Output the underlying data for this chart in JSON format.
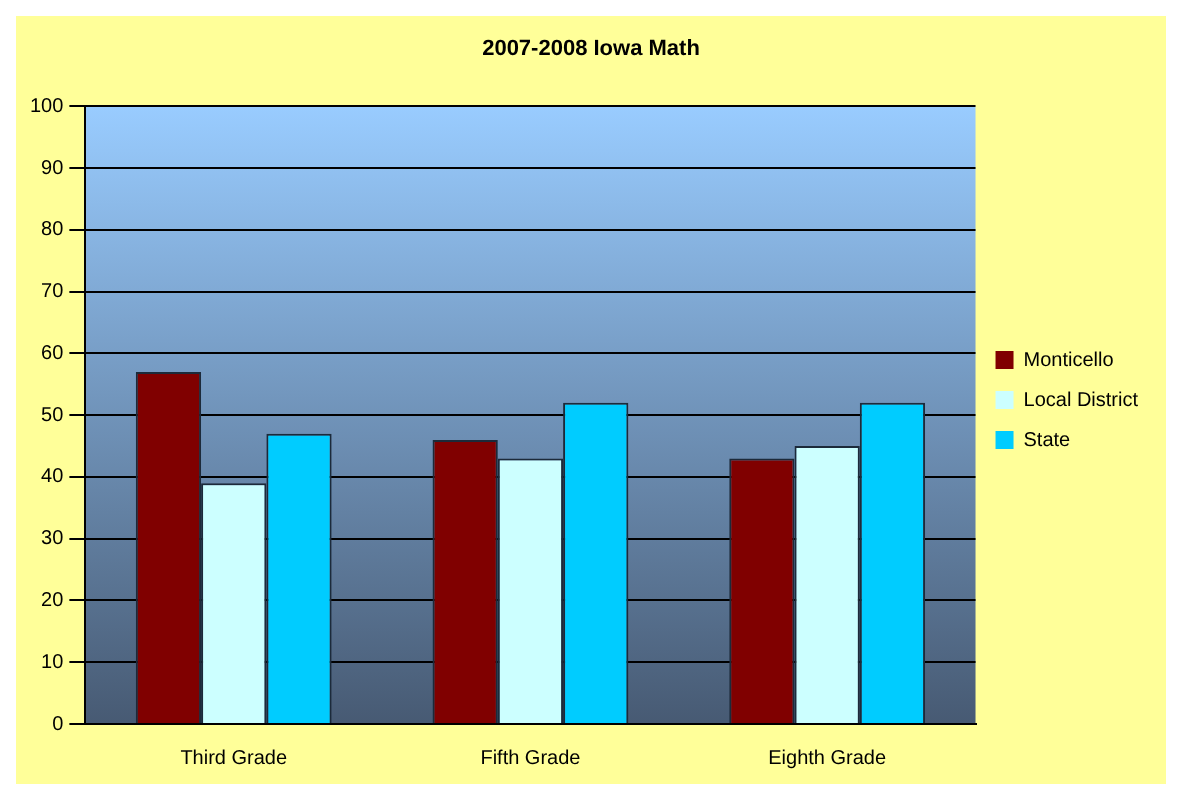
{
  "chart_data": {
    "type": "bar",
    "title": "2007-2008 Iowa Math",
    "categories": [
      "Third Grade",
      "Fifth Grade",
      "Eighth Grade"
    ],
    "series": [
      {
        "name": "Monticello",
        "color": "#800000",
        "values": [
          57,
          46,
          43
        ]
      },
      {
        "name": "Local District",
        "color": "#ccffff",
        "values": [
          39,
          43,
          45
        ]
      },
      {
        "name": "State",
        "color": "#00ccff",
        "values": [
          47,
          52,
          52
        ]
      }
    ],
    "ylim": [
      0,
      100
    ],
    "yticks": [
      0,
      10,
      20,
      30,
      40,
      50,
      60,
      70,
      80,
      90,
      100
    ],
    "grid": "y",
    "legend": "right"
  }
}
